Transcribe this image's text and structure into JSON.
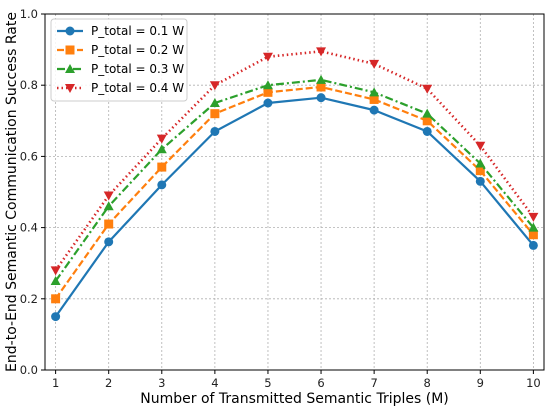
{
  "chart_data": {
    "type": "line",
    "title": "",
    "xlabel": "Number of Transmitted Semantic Triples (M)",
    "ylabel": "End-to-End Semantic Communication Success Rate",
    "x": [
      1,
      2,
      3,
      4,
      5,
      6,
      7,
      8,
      9,
      10
    ],
    "xlim": [
      0.8,
      10.2
    ],
    "ylim": [
      0.0,
      1.0
    ],
    "xticks": [
      "1",
      "2",
      "3",
      "4",
      "5",
      "6",
      "7",
      "8",
      "9",
      "10"
    ],
    "yticks": [
      "0.0",
      "0.2",
      "0.4",
      "0.6",
      "0.8",
      "1.0"
    ],
    "grid": true,
    "legend_position": "top-left",
    "series": [
      {
        "name": "P_total = 0.1 W",
        "color": "#1f77b4",
        "linestyle": "solid",
        "marker": "circle",
        "values": [
          0.15,
          0.36,
          0.52,
          0.67,
          0.75,
          0.765,
          0.73,
          0.67,
          0.53,
          0.35
        ]
      },
      {
        "name": "P_total = 0.2 W",
        "color": "#ff7f0e",
        "linestyle": "dashed",
        "marker": "square",
        "values": [
          0.2,
          0.41,
          0.57,
          0.72,
          0.78,
          0.795,
          0.76,
          0.7,
          0.56,
          0.38
        ]
      },
      {
        "name": "P_total = 0.3 W",
        "color": "#2ca02c",
        "linestyle": "dashdot",
        "marker": "triangle-up",
        "values": [
          0.25,
          0.46,
          0.62,
          0.75,
          0.8,
          0.815,
          0.78,
          0.72,
          0.58,
          0.4
        ]
      },
      {
        "name": "P_total = 0.4 W",
        "color": "#d62728",
        "linestyle": "dotted",
        "marker": "triangle-down",
        "values": [
          0.28,
          0.49,
          0.65,
          0.8,
          0.88,
          0.895,
          0.86,
          0.79,
          0.63,
          0.43
        ]
      }
    ]
  }
}
